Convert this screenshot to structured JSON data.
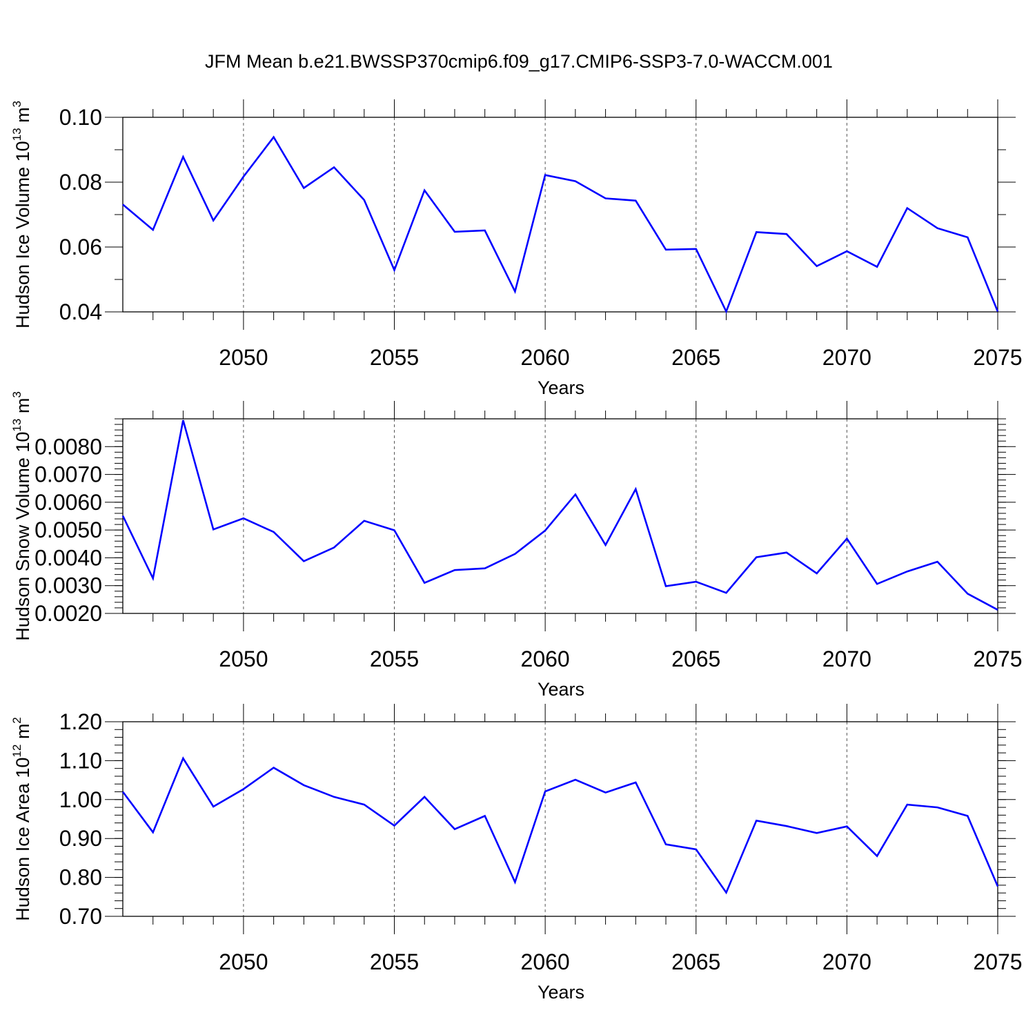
{
  "chart_data": [
    {
      "type": "line",
      "title": "JFM Mean b.e21.BWSSP370cmip6.f09_g17.CMIP6-SSP3-7.0-WACCM.001",
      "xlabel": "Years",
      "ylabel": "Hudson Ice Volume 10",
      "ylabel_exp": "13",
      "ylabel_unit": " m",
      "ylabel_unit_exp": "3",
      "xlim": [
        2046,
        2075
      ],
      "ylim": [
        0.04,
        0.1
      ],
      "x_ticks": [
        2050,
        2055,
        2060,
        2065,
        2070,
        2075
      ],
      "y_ticks": [
        0.04,
        0.06,
        0.08,
        0.1
      ],
      "y_tick_labels": [
        "0.04",
        "0.06",
        "0.08",
        "0.10"
      ],
      "y_minor_step": 0.01,
      "line_color": "#0000ff",
      "x": [
        2046,
        2047,
        2048,
        2049,
        2050,
        2051,
        2052,
        2053,
        2054,
        2055,
        2056,
        2057,
        2058,
        2059,
        2060,
        2061,
        2062,
        2063,
        2064,
        2065,
        2066,
        2067,
        2068,
        2069,
        2070,
        2071,
        2072,
        2073,
        2074,
        2075
      ],
      "values": [
        0.0731,
        0.0653,
        0.0878,
        0.0682,
        0.0817,
        0.0939,
        0.0782,
        0.0846,
        0.0745,
        0.0529,
        0.0775,
        0.0647,
        0.0651,
        0.0463,
        0.0822,
        0.0803,
        0.075,
        0.0743,
        0.0592,
        0.0594,
        0.0401,
        0.0646,
        0.064,
        0.0541,
        0.0587,
        0.0539,
        0.072,
        0.0658,
        0.063,
        0.0401
      ]
    },
    {
      "type": "line",
      "title": "",
      "xlabel": "Years",
      "ylabel": "Hudson Snow Volume 10",
      "ylabel_exp": "13",
      "ylabel_unit": " m",
      "ylabel_unit_exp": "3",
      "xlim": [
        2046,
        2075
      ],
      "ylim": [
        0.002,
        0.009
      ],
      "x_ticks": [
        2050,
        2055,
        2060,
        2065,
        2070,
        2075
      ],
      "y_ticks": [
        0.002,
        0.003,
        0.004,
        0.005,
        0.006,
        0.007,
        0.008
      ],
      "y_tick_labels": [
        "0.0020",
        "0.0030",
        "0.0040",
        "0.0050",
        "0.0060",
        "0.0070",
        "0.0080"
      ],
      "y_minor_step": 0.0002,
      "line_color": "#0000ff",
      "x": [
        2046,
        2047,
        2048,
        2049,
        2050,
        2051,
        2052,
        2053,
        2054,
        2055,
        2056,
        2057,
        2058,
        2059,
        2060,
        2061,
        2062,
        2063,
        2064,
        2065,
        2066,
        2067,
        2068,
        2069,
        2070,
        2071,
        2072,
        2073,
        2074,
        2075
      ],
      "values": [
        0.00551,
        0.00326,
        0.00895,
        0.00502,
        0.00542,
        0.00493,
        0.00388,
        0.00437,
        0.00533,
        0.00499,
        0.0031,
        0.00356,
        0.00362,
        0.00414,
        0.00498,
        0.00628,
        0.00446,
        0.00647,
        0.00298,
        0.00314,
        0.00274,
        0.00402,
        0.00419,
        0.00344,
        0.00469,
        0.00306,
        0.00351,
        0.00386,
        0.00271,
        0.00213
      ]
    },
    {
      "type": "line",
      "title": "",
      "xlabel": "Years",
      "ylabel": "Hudson Ice Area 10",
      "ylabel_exp": "12",
      "ylabel_unit": " m",
      "ylabel_unit_exp": "2",
      "xlim": [
        2046,
        2075
      ],
      "ylim": [
        0.7,
        1.2
      ],
      "x_ticks": [
        2050,
        2055,
        2060,
        2065,
        2070,
        2075
      ],
      "y_ticks": [
        0.7,
        0.8,
        0.9,
        1.0,
        1.1,
        1.2
      ],
      "y_tick_labels": [
        "0.70",
        "0.80",
        "0.90",
        "1.00",
        "1.10",
        "1.20"
      ],
      "y_minor_step": 0.02,
      "line_color": "#0000ff",
      "x": [
        2046,
        2047,
        2048,
        2049,
        2050,
        2051,
        2052,
        2053,
        2054,
        2055,
        2056,
        2057,
        2058,
        2059,
        2060,
        2061,
        2062,
        2063,
        2064,
        2065,
        2066,
        2067,
        2068,
        2069,
        2070,
        2071,
        2072,
        2073,
        2074,
        2075
      ],
      "values": [
        1.02,
        0.916,
        1.106,
        0.982,
        1.027,
        1.082,
        1.037,
        1.007,
        0.987,
        0.933,
        1.007,
        0.924,
        0.958,
        0.788,
        1.021,
        1.051,
        1.018,
        1.044,
        0.885,
        0.872,
        0.761,
        0.946,
        0.932,
        0.914,
        0.931,
        0.855,
        0.987,
        0.98,
        0.958,
        0.777
      ]
    }
  ]
}
